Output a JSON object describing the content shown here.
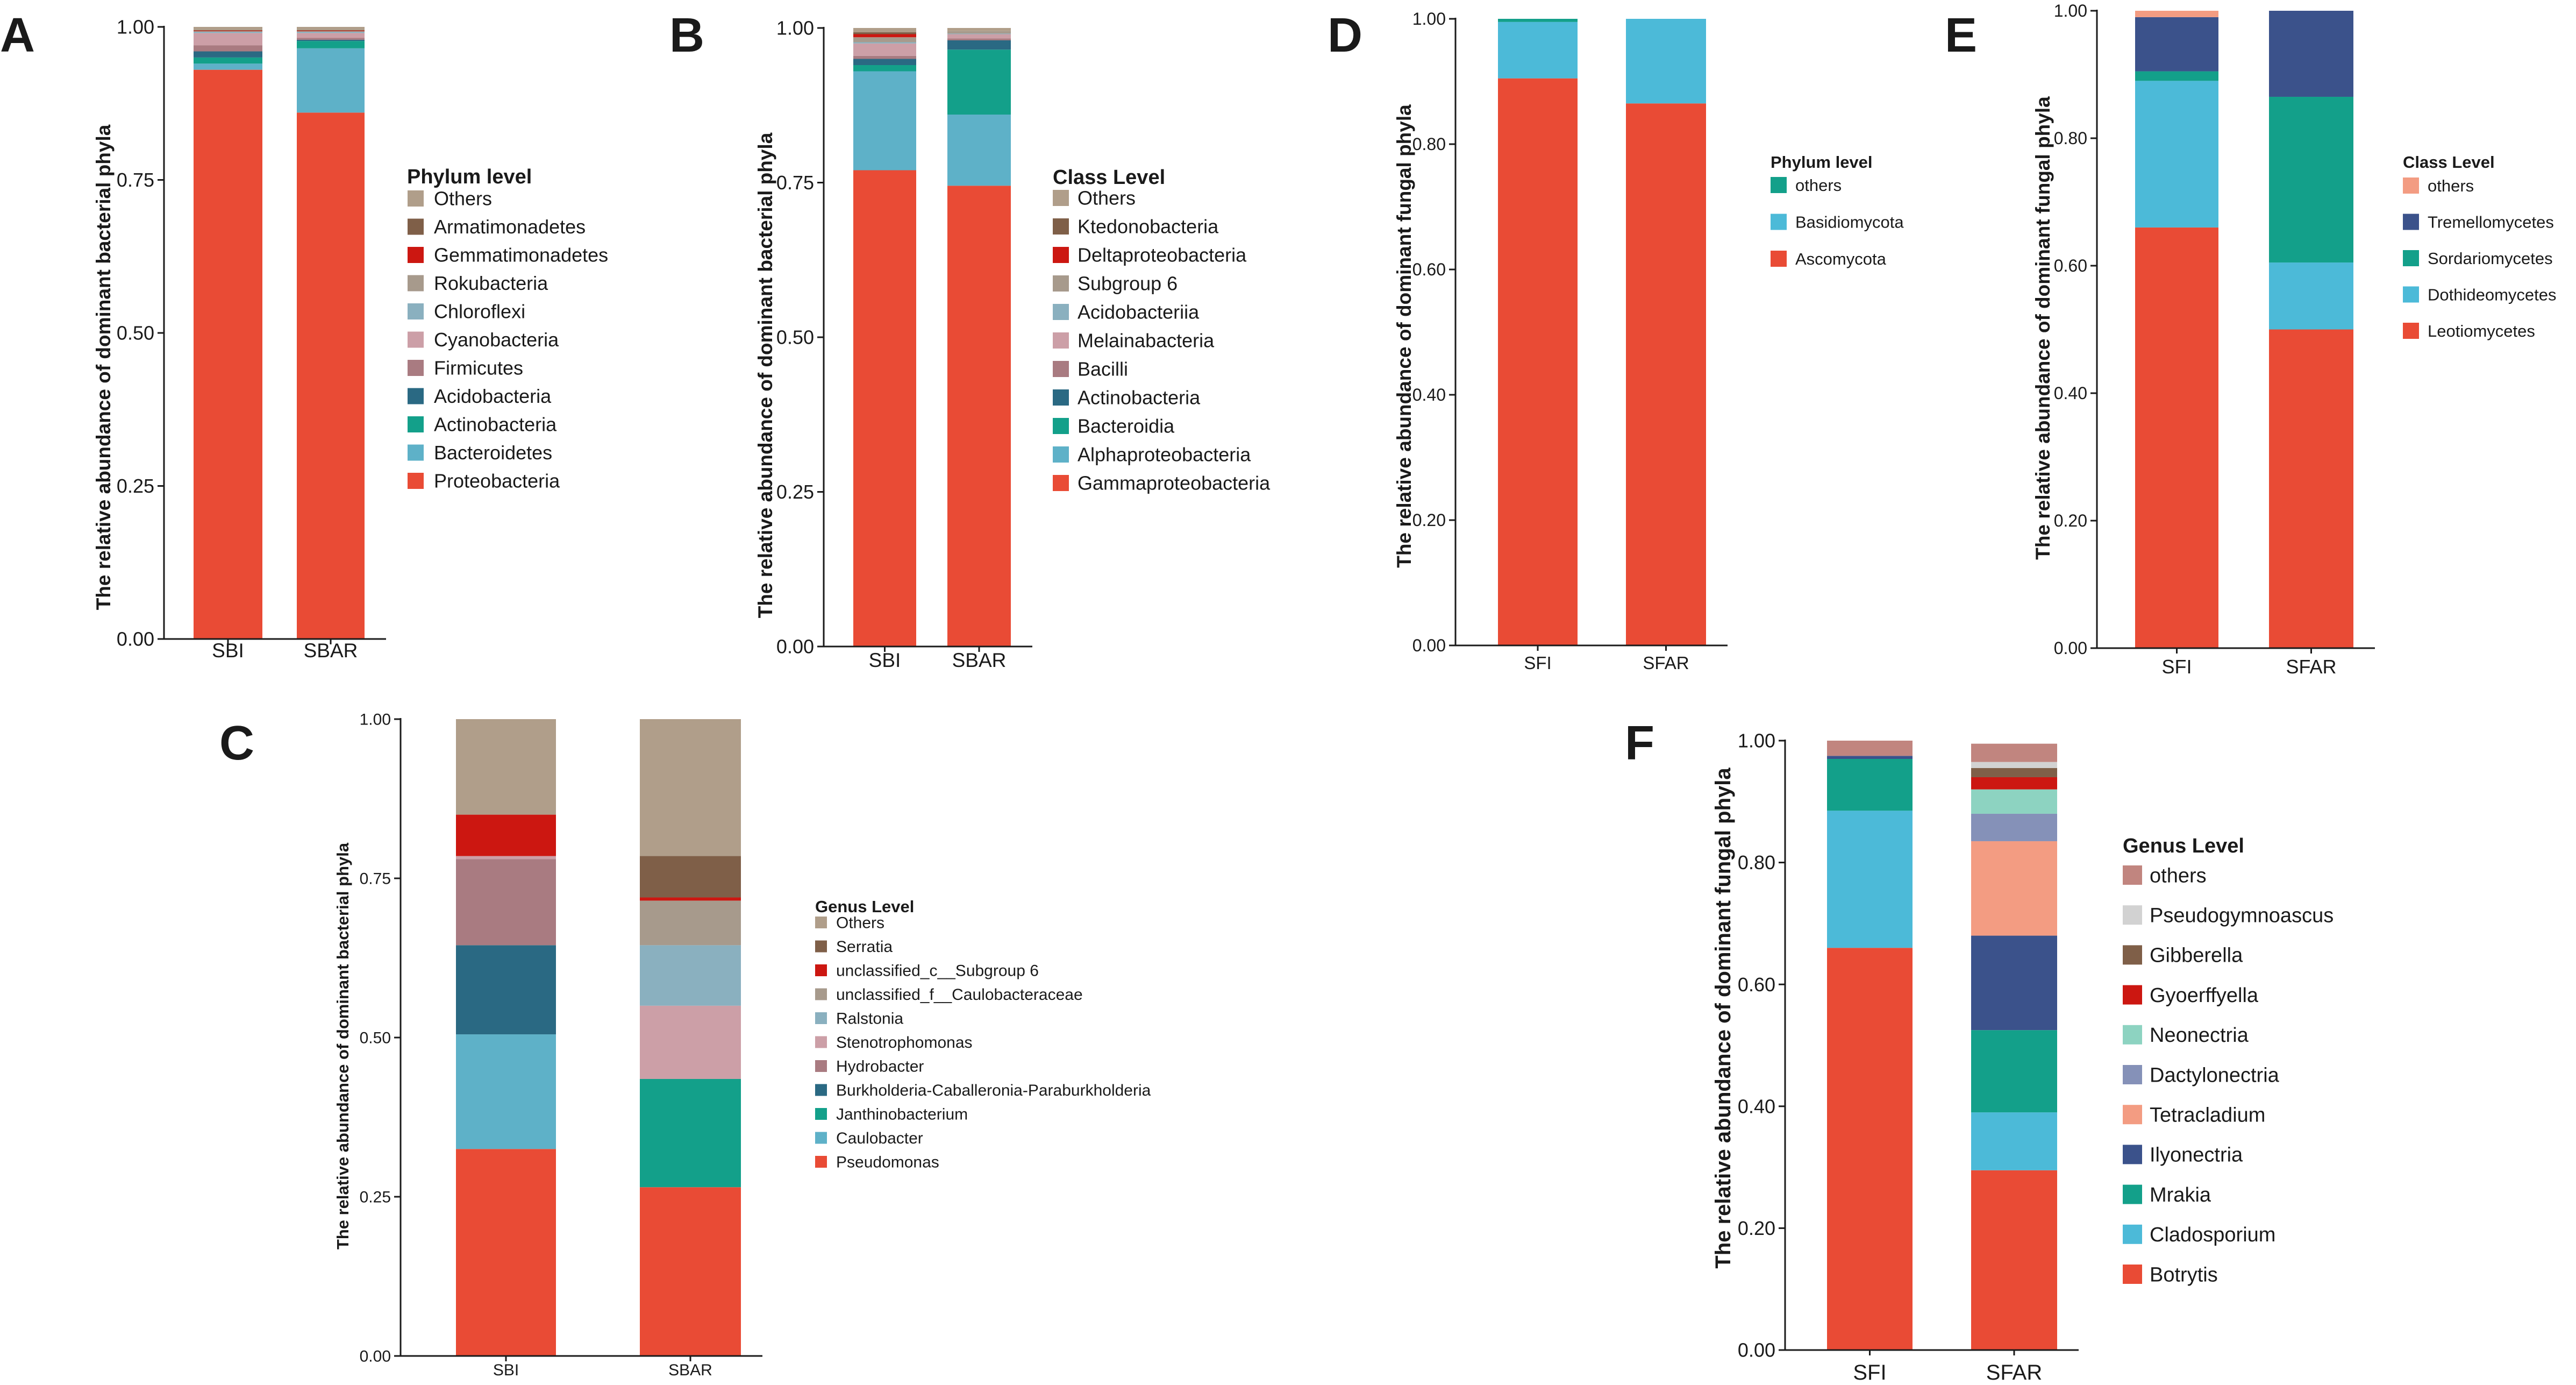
{
  "colors": {
    "red": "#e94b35",
    "lightblue": "#5eb1c8",
    "cyan": "#4cbad8",
    "teal": "#13a08a",
    "navy": "#2a6983",
    "darknavy": "#3b528b",
    "mauve": "#a97b81",
    "pink": "#cc9fa7",
    "gray_blue": "#8ab0bf",
    "tan": "#b09e8a",
    "darkred": "#cc1711",
    "brown": "#7f5f48",
    "salmon": "#f39c82",
    "lavender": "#8591b8",
    "mint": "#8dd3c1",
    "lightgray": "#d2d2d2",
    "rosy": "#c1857f",
    "rust": "#b4603e"
  },
  "chart_data": [
    {
      "panel": "A",
      "type": "stacked_bar",
      "ylabel": "The relative abundance of dominant bacterial phyla",
      "categories": [
        "SBI",
        "SBAR"
      ],
      "yticks": [
        "0.00",
        "0.25",
        "0.50",
        "0.75",
        "1.00"
      ],
      "ylim": [
        0,
        1
      ],
      "legend_title": "Phylum level",
      "series": [
        {
          "name": "Proteobacteria",
          "color": "#e94b35",
          "values": [
            0.93,
            0.86
          ]
        },
        {
          "name": "Bacteroidetes",
          "color": "#5eb1c8",
          "values": [
            0.01,
            0.105
          ]
        },
        {
          "name": "Actinobacteria",
          "color": "#13a08a",
          "values": [
            0.01,
            0.012
          ]
        },
        {
          "name": "Acidobacteria",
          "color": "#2a6983",
          "values": [
            0.01,
            0.002
          ]
        },
        {
          "name": "Firmicutes",
          "color": "#a97b81",
          "values": [
            0.01,
            0.003
          ]
        },
        {
          "name": "Cyanobacteria",
          "color": "#cc9fa7",
          "values": [
            0.02,
            0.008
          ]
        },
        {
          "name": "Chloroflexi",
          "color": "#8ab0bf",
          "values": [
            0.002,
            0.002
          ]
        },
        {
          "name": "Rokubacteria",
          "color": "#a79a8c",
          "values": [
            0.001,
            0.001
          ]
        },
        {
          "name": "Gemmatimonadetes",
          "color": "#cc1711",
          "values": [
            0.001,
            0.001
          ]
        },
        {
          "name": "Armatimonadetes",
          "color": "#7f5f48",
          "values": [
            0.001,
            0.001
          ]
        },
        {
          "name": "Others",
          "color": "#b09e8a",
          "values": [
            0.005,
            0.005
          ]
        }
      ]
    },
    {
      "panel": "B",
      "type": "stacked_bar",
      "ylabel": "The relative abundance of dominant bacterial phyla",
      "categories": [
        "SBI",
        "SBAR"
      ],
      "yticks": [
        "0.00",
        "0.25",
        "0.50",
        "0.75",
        "1.00"
      ],
      "ylim": [
        0,
        1
      ],
      "legend_title": "Class Level",
      "series": [
        {
          "name": "Gammaproteobacteria",
          "color": "#e94b35",
          "values": [
            0.77,
            0.745
          ]
        },
        {
          "name": "Alphaproteobacteria",
          "color": "#5eb1c8",
          "values": [
            0.16,
            0.115
          ]
        },
        {
          "name": "Bacteroidia",
          "color": "#13a08a",
          "values": [
            0.01,
            0.105
          ]
        },
        {
          "name": "Actinobacteria",
          "color": "#2a6983",
          "values": [
            0.01,
            0.015
          ]
        },
        {
          "name": "Bacilli",
          "color": "#a97b81",
          "values": [
            0.005,
            0.003
          ]
        },
        {
          "name": "Melainabacteria",
          "color": "#cc9fa7",
          "values": [
            0.02,
            0.007
          ]
        },
        {
          "name": "Acidobacteriia",
          "color": "#8ab0bf",
          "values": [
            0.002,
            0.001
          ]
        },
        {
          "name": "Subgroup 6",
          "color": "#a79a8c",
          "values": [
            0.008,
            0.004
          ]
        },
        {
          "name": "Deltaproteobacteria",
          "color": "#cc1711",
          "values": [
            0.005,
            0.0
          ]
        },
        {
          "name": "Ktedonobacteria",
          "color": "#7f5f48",
          "values": [
            0.003,
            0.0
          ]
        },
        {
          "name": "Others",
          "color": "#b09e8a",
          "values": [
            0.007,
            0.005
          ]
        }
      ]
    },
    {
      "panel": "C",
      "type": "stacked_bar",
      "ylabel": "The relative abundance of dominant bacterial phyla",
      "categories": [
        "SBI",
        "SBAR"
      ],
      "yticks": [
        "0.00",
        "0.25",
        "0.50",
        "0.75",
        "1.00"
      ],
      "ylim": [
        0,
        1
      ],
      "legend_title": "Genus Level",
      "series": [
        {
          "name": "Pseudomonas",
          "color": "#e94b35",
          "values": [
            0.325,
            0.265
          ]
        },
        {
          "name": "Caulobacter",
          "color": "#5eb1c8",
          "values": [
            0.18,
            0.0
          ]
        },
        {
          "name": "Janthinobacterium",
          "color": "#13a08a",
          "values": [
            0.0,
            0.17
          ]
        },
        {
          "name": "Burkholderia-Caballeronia-Paraburkholderia",
          "color": "#2a6983",
          "values": [
            0.14,
            0.0
          ]
        },
        {
          "name": "Hydrobacter",
          "color": "#a97b81",
          "values": [
            0.135,
            0.0
          ]
        },
        {
          "name": "Stenotrophomonas",
          "color": "#cc9fa7",
          "values": [
            0.005,
            0.115
          ]
        },
        {
          "name": "Ralstonia",
          "color": "#8ab0bf",
          "values": [
            0.0,
            0.095
          ]
        },
        {
          "name": "unclassified_f__Caulobacteraceae",
          "color": "#a79a8c",
          "values": [
            0.0,
            0.07
          ]
        },
        {
          "name": "unclassified_c__Subgroup 6",
          "color": "#cc1711",
          "values": [
            0.065,
            0.005
          ]
        },
        {
          "name": "Serratia",
          "color": "#7f5f48",
          "values": [
            0.0,
            0.065
          ]
        },
        {
          "name": "Others",
          "color": "#b09e8a",
          "values": [
            0.15,
            0.215
          ]
        }
      ]
    },
    {
      "panel": "D",
      "type": "stacked_bar",
      "ylabel": "The relative abundance of dominant fungal phyla",
      "categories": [
        "SFI",
        "SFAR"
      ],
      "yticks": [
        "0.00",
        "0.20",
        "0.40",
        "0.60",
        "0.80",
        "1.00"
      ],
      "ylim": [
        0,
        1
      ],
      "legend_title": "Phylum level",
      "series": [
        {
          "name": "Ascomycota",
          "color": "#e94b35",
          "values": [
            0.905,
            0.865
          ]
        },
        {
          "name": "Basidiomycota",
          "color": "#4cbad8",
          "values": [
            0.09,
            0.135
          ]
        },
        {
          "name": "others",
          "color": "#13a08a",
          "values": [
            0.005,
            0.0
          ]
        }
      ]
    },
    {
      "panel": "E",
      "type": "stacked_bar",
      "ylabel": "The relative abundance of dominant fungal phyla",
      "categories": [
        "SFI",
        "SFAR"
      ],
      "yticks": [
        "0.00",
        "0.20",
        "0.40",
        "0.60",
        "0.80",
        "1.00"
      ],
      "ylim": [
        0,
        1
      ],
      "legend_title": "Class Level",
      "series": [
        {
          "name": "Leotiomycetes",
          "color": "#e94b35",
          "values": [
            0.66,
            0.5
          ]
        },
        {
          "name": "Dothideomycetes",
          "color": "#4cbad8",
          "values": [
            0.23,
            0.105
          ]
        },
        {
          "name": "Sordariomycetes",
          "color": "#13a08a",
          "values": [
            0.015,
            0.26
          ]
        },
        {
          "name": "Tremellomycetes",
          "color": "#3b528b",
          "values": [
            0.085,
            0.135
          ]
        },
        {
          "name": "others",
          "color": "#f39c82",
          "values": [
            0.01,
            0.0
          ]
        }
      ]
    },
    {
      "panel": "F",
      "type": "stacked_bar",
      "ylabel": "The relative abundance of dominant fungal phyla",
      "categories": [
        "SFI",
        "SFAR"
      ],
      "yticks": [
        "0.00",
        "0.20",
        "0.40",
        "0.60",
        "0.80",
        "1.00"
      ],
      "ylim": [
        0,
        1
      ],
      "legend_title": "Genus Level",
      "series": [
        {
          "name": "Botrytis",
          "color": "#e94b35",
          "values": [
            0.66,
            0.295
          ]
        },
        {
          "name": "Cladosporium",
          "color": "#4cbad8",
          "values": [
            0.225,
            0.095
          ]
        },
        {
          "name": "Mrakia",
          "color": "#13a08a",
          "values": [
            0.085,
            0.135
          ]
        },
        {
          "name": "Ilyonectria",
          "color": "#3b528b",
          "values": [
            0.005,
            0.155
          ]
        },
        {
          "name": "Tetracladium",
          "color": "#f39c82",
          "values": [
            0.0,
            0.155
          ]
        },
        {
          "name": "Dactylonectria",
          "color": "#8591b8",
          "values": [
            0.0,
            0.045
          ]
        },
        {
          "name": "Neonectria",
          "color": "#8dd3c1",
          "values": [
            0.0,
            0.04
          ]
        },
        {
          "name": "Gyoerffyella",
          "color": "#cc1711",
          "values": [
            0.0,
            0.02
          ]
        },
        {
          "name": "Gibberella",
          "color": "#7f5f48",
          "values": [
            0.0,
            0.015
          ]
        },
        {
          "name": "Pseudogymnoascus",
          "color": "#d2d2d2",
          "values": [
            0.0,
            0.01
          ]
        },
        {
          "name": "others",
          "color": "#c1857f",
          "values": [
            0.025,
            0.03
          ]
        }
      ]
    }
  ]
}
